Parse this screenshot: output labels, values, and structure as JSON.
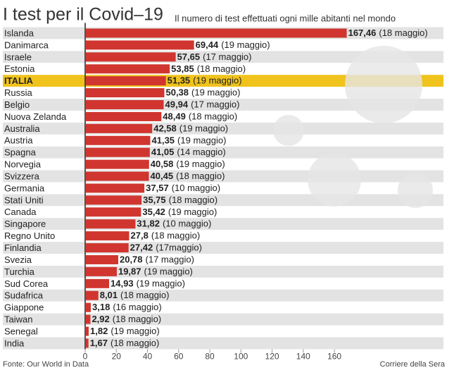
{
  "chart_data": {
    "type": "hbar",
    "title": "I test per il Covid–19",
    "subtitle": "Il numero di test effettuati ogni mille abitanti nel mondo",
    "source": "Fonte: Our World in Data",
    "credit": "Corriere della Sera",
    "categories": [
      "Islanda",
      "Danimarca",
      "Israele",
      "Estonia",
      "ITALIA",
      "Russia",
      "Belgio",
      "Nuova Zelanda",
      "Australia",
      "Austria",
      "Spagna",
      "Norvegia",
      "Svizzera",
      "Germania",
      "Stati Uniti",
      "Canada",
      "Singapore",
      "Regno Unito",
      "Finlandia",
      "Svezia",
      "Turchia",
      "Sud Corea",
      "Sudafrica",
      "Giappone",
      "Taiwan",
      "Senegal",
      "India"
    ],
    "values": [
      167.46,
      69.44,
      57.65,
      53.85,
      51.35,
      50.38,
      49.94,
      48.49,
      42.58,
      41.35,
      41.05,
      40.58,
      40.45,
      37.57,
      35.75,
      35.42,
      31.82,
      27.8,
      27.42,
      20.78,
      19.87,
      14.93,
      8.01,
      3.18,
      2.92,
      1.82,
      1.67
    ],
    "value_labels": [
      "167,46",
      "69,44",
      "57,65",
      "53,85",
      "51,35",
      "50,38",
      "49,94",
      "48,49",
      "42,58",
      "41,35",
      "41,05",
      "40,58",
      "40,45",
      "37,57",
      "35,75",
      "35,42",
      "31,82",
      "27,8",
      "27,42",
      "20,78",
      "19,87",
      "14,93",
      "8,01",
      "3,18",
      "2,92",
      "1,82",
      "1,67"
    ],
    "dates": [
      "(18 maggio)",
      "(19 maggio)",
      "(17 maggio)",
      "(18 maggio)",
      "(19 maggio)",
      "(19 maggio)",
      "(17 maggio)",
      "(18 maggio)",
      "(19 maggio)",
      "(19 maggio)",
      "(14 maggio)",
      "(19 maggio)",
      "(18 maggio)",
      "(10 maggio)",
      "(18 maggio)",
      "(19 maggio)",
      "(10 maggio)",
      "(18 maggio)",
      "(17maggio)",
      "(17 maggio)",
      "(19 maggio)",
      "(19 maggio)",
      "(18 maggio)",
      "(16 maggio)",
      "(18 maggio)",
      "(19 maggio)",
      "(18 maggio)"
    ],
    "color": "#d0362f",
    "highlight": 4,
    "highlight_color": "#f0c31c",
    "xlim": [
      0,
      230
    ],
    "xticks": [
      0,
      20,
      40,
      60,
      80,
      100,
      120,
      140,
      160
    ],
    "grid": true
  }
}
